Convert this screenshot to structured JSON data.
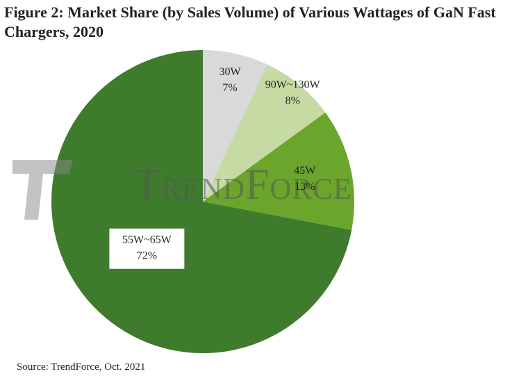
{
  "chart_data": {
    "type": "pie",
    "title": "Figure 2: Market Share (by Sales Volume) of Various Wattages of GaN Fast Chargers, 2020",
    "categories": [
      "30W",
      "90W~130W",
      "45W",
      "55W~65W"
    ],
    "values": [
      7,
      8,
      13,
      72
    ],
    "value_labels": [
      "7%",
      "8%",
      "13%",
      "72%"
    ],
    "colors": [
      "#d9d9d9",
      "#c6dba3",
      "#6ba52b",
      "#3f7b2c"
    ],
    "watermark": "TrendForce",
    "source": "Source: TrendForce, Oct. 2021"
  }
}
